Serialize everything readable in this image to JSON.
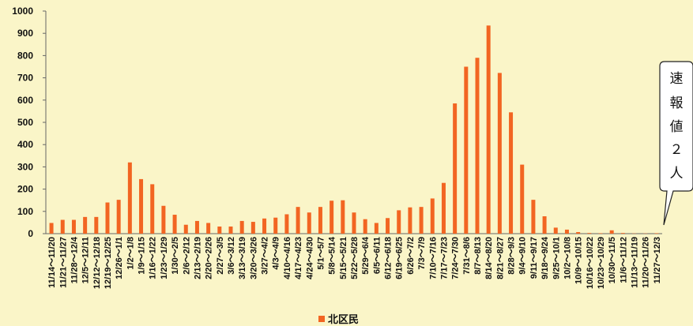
{
  "chart_data": {
    "type": "bar",
    "ylim": [
      0,
      1000
    ],
    "yticks": [
      "0",
      "100",
      "200",
      "300",
      "400",
      "500",
      "600",
      "700",
      "800",
      "900",
      "1000"
    ],
    "bar_color": "#F26522",
    "grid": false,
    "categories": [
      "11/14～11/20",
      "11/21～11/27",
      "11/28～12/4",
      "12/5～12/11",
      "12/12～12/18",
      "12/19～12/25",
      "12/26～1/1",
      "1/2～1/8",
      "1/9～1/15",
      "1/16～1/22",
      "1/23～1/29",
      "1/30～2/5",
      "2/6～2/12",
      "2/13～2/19",
      "2/20～2/26",
      "2/27～3/5",
      "3/6～3/12",
      "3/13～3/19",
      "3/20～3/26",
      "3/27～4/2",
      "4/3～4/9",
      "4/10～4/16",
      "4/17～4/23",
      "4/24～4/30",
      "5/1～5/7",
      "5/8～5/14",
      "5/15～5/21",
      "5/22～5/28",
      "5/29～6/4",
      "6/5～6/11",
      "6/12～6/18",
      "6/19～6/25",
      "6/26～7/2",
      "7/3～7/9",
      "7/10～7/16",
      "7/17～7/23",
      "7/24～7/30",
      "7/31～8/6",
      "8/7～8/13",
      "8/14～8/20",
      "8/21～8/27",
      "8/28～9/3",
      "9/4～9/10",
      "9/11～9/17",
      "9/18～9/24",
      "9/25～10/1",
      "10/2～10/8",
      "10/9～10/15",
      "10/16～10/22",
      "10/23～10/29",
      "10/30～11/5",
      "11/6～11/12",
      "11/13～11/19",
      "11/20～11/26",
      "11/27～12/3"
    ],
    "series": [
      {
        "name": "北区民",
        "values": [
          48,
          62,
          62,
          75,
          75,
          140,
          152,
          320,
          245,
          222,
          125,
          85,
          40,
          57,
          48,
          32,
          32,
          57,
          53,
          68,
          72,
          87,
          120,
          95,
          120,
          148,
          150,
          95,
          65,
          48,
          70,
          105,
          118,
          120,
          158,
          228,
          585,
          750,
          790,
          935,
          722,
          545,
          310,
          152,
          78,
          27,
          18,
          7,
          3,
          2,
          15,
          3,
          1,
          1,
          2
        ]
      }
    ],
    "callout": [
      "速",
      "報",
      "値",
      "２",
      "人"
    ]
  }
}
